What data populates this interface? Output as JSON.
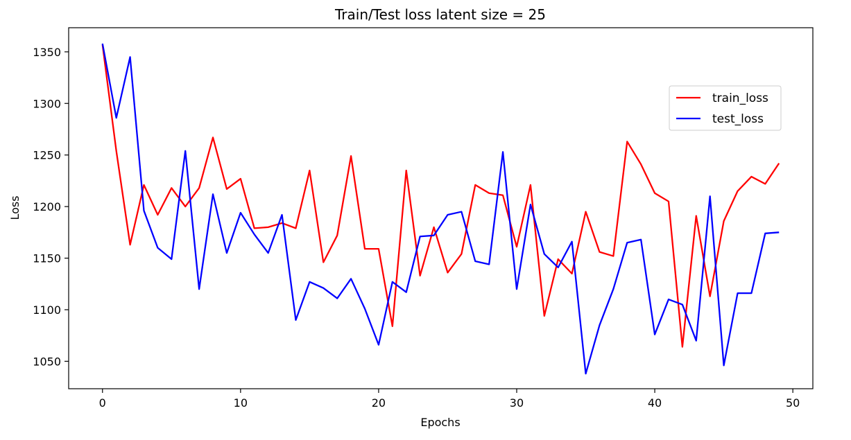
{
  "chart_data": {
    "type": "line",
    "title": "Train/Test loss latent size = 25",
    "xlabel": "Epochs",
    "ylabel": "Loss",
    "xlim": [
      -2.45,
      51.45
    ],
    "ylim": [
      1023.4,
      1373.4
    ],
    "xticks": [
      0,
      10,
      20,
      30,
      40,
      50
    ],
    "yticks": [
      1050,
      1100,
      1150,
      1200,
      1250,
      1300,
      1350
    ],
    "grid": false,
    "legend_position": "upper right",
    "x": [
      0,
      1,
      2,
      3,
      4,
      5,
      6,
      7,
      8,
      9,
      10,
      11,
      12,
      13,
      14,
      15,
      16,
      17,
      18,
      19,
      20,
      21,
      22,
      23,
      24,
      25,
      26,
      27,
      28,
      29,
      30,
      31,
      32,
      33,
      34,
      35,
      36,
      37,
      38,
      39,
      40,
      41,
      42,
      43,
      44,
      45,
      46,
      47,
      48,
      49
    ],
    "series": [
      {
        "name": "train_loss",
        "color": "#ff0000",
        "values": [
          1357,
          1254,
          1163,
          1221,
          1192,
          1218,
          1200,
          1218,
          1267,
          1217,
          1227,
          1179,
          1180,
          1184,
          1179,
          1235,
          1146,
          1172,
          1249,
          1159,
          1159,
          1084,
          1235,
          1133,
          1180,
          1136,
          1154,
          1221,
          1213,
          1211,
          1161,
          1221,
          1094,
          1149,
          1135,
          1195,
          1156,
          1152,
          1263,
          1241,
          1213,
          1205,
          1064,
          1191,
          1113,
          1186,
          1215,
          1229,
          1222,
          1242
        ]
      },
      {
        "name": "test_loss",
        "color": "#0000ff",
        "values": [
          1358,
          1286,
          1345,
          1196,
          1160,
          1149,
          1254,
          1120,
          1212,
          1155,
          1194,
          1173,
          1155,
          1192,
          1090,
          1127,
          1121,
          1111,
          1130,
          1101,
          1066,
          1127,
          1117,
          1171,
          1172,
          1192,
          1195,
          1147,
          1144,
          1253,
          1120,
          1202,
          1154,
          1141,
          1166,
          1038,
          1085,
          1120,
          1165,
          1168,
          1076,
          1110,
          1105,
          1070,
          1210,
          1046,
          1116,
          1116,
          1174,
          1175
        ]
      }
    ]
  }
}
